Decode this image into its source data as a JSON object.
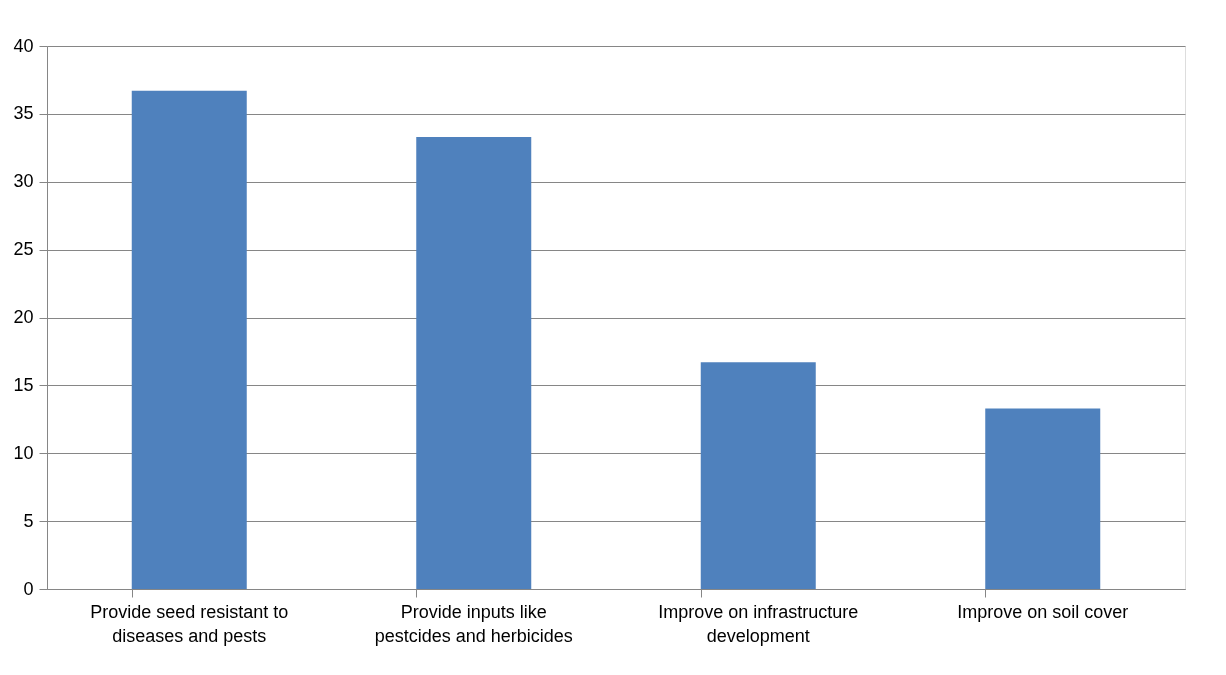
{
  "chart_data": {
    "type": "bar",
    "categories": [
      "Provide seed resistant to diseases and pests",
      "Provide inputs like pestcides and herbicides",
      "Improve on infrastructure development",
      "Improve on soil cover"
    ],
    "values": [
      36.7,
      33.3,
      16.7,
      13.3
    ],
    "color": "#4f81bd",
    "ylim": [
      0,
      40
    ],
    "yticks": [
      0,
      5,
      10,
      15,
      20,
      25,
      30,
      35,
      40
    ],
    "grid": "y"
  }
}
